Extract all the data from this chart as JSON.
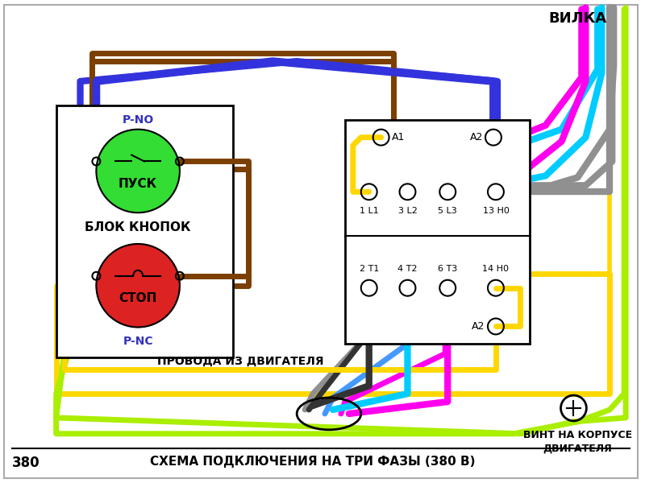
{
  "bg_color": "#ffffff",
  "outer_border_color": "#aaaaaa",
  "title_bottom": "СХЕМА ПОДКЛЮЧЕНИЯ НА ТРИ ФАЗЫ (380 В)",
  "label_380": "380",
  "label_vilka": "ВИЛКА",
  "label_vint": "ВИНТ НА КОРПУСЕ\nДВИГАТЕЛЯ",
  "label_provoda": "ПРОВОДА ИЗ ДВИГАТЕЛЯ",
  "label_blok": "БЛОК КНОПОК",
  "label_pno": "P-NO",
  "label_pnc": "P-NC",
  "label_pusk": "ПУСК",
  "label_stop": "СТОП",
  "wire_brown": "#7B3F00",
  "wire_blue_dark": "#3333DD",
  "wire_yellow": "#FFD700",
  "wire_gray": "#909090",
  "wire_cyan": "#00CCFF",
  "wire_magenta": "#FF00EE",
  "wire_green_yellow": "#AAEE00",
  "wire_black": "#333333",
  "wire_blue_light": "#4499FF",
  "pusk_color": "#33DD33",
  "stop_color": "#DD2222",
  "text_blue": "#3333BB",
  "wire_lw": 5,
  "wire_lw_thin": 3.5
}
